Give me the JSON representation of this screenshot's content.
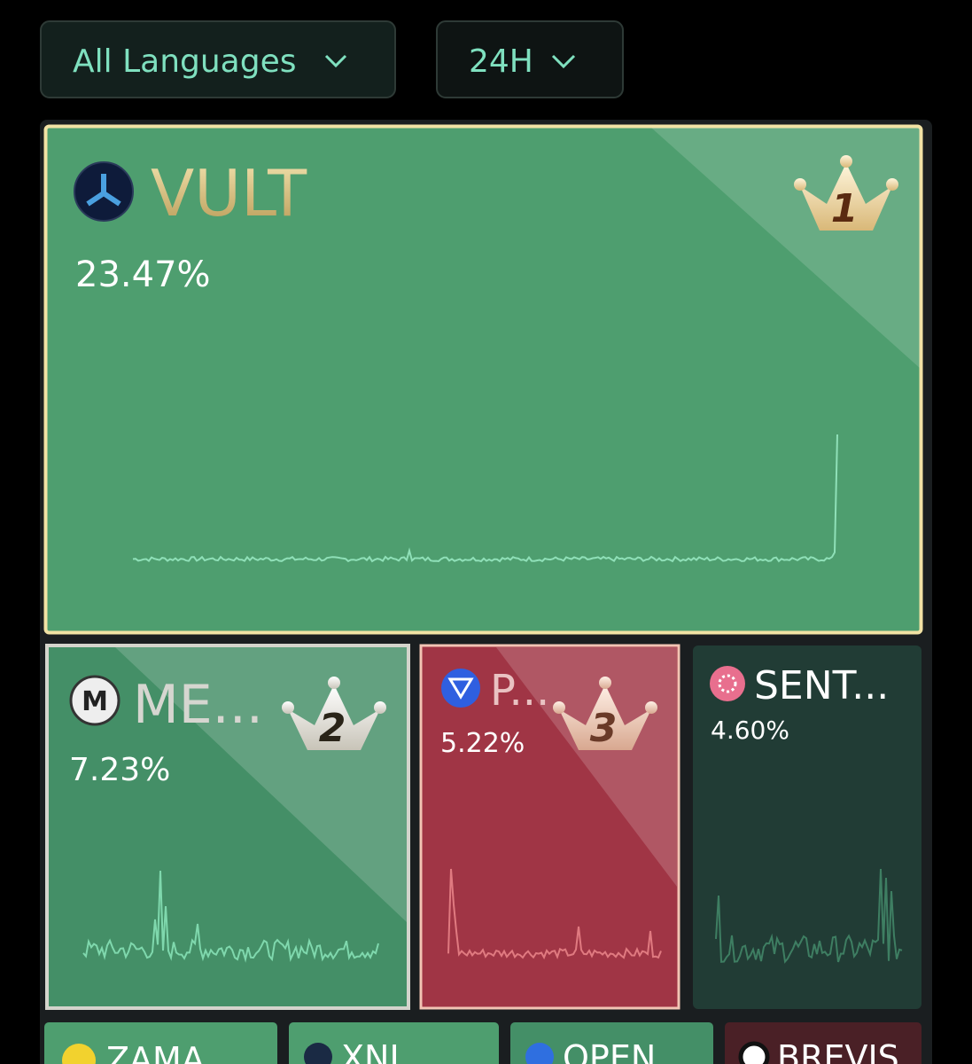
{
  "filters": [
    "All Languages",
    "24H"
  ],
  "tiles": [
    {
      "name": "VULT",
      "change": "23.47%",
      "rank": "1"
    },
    {
      "name": "ME...",
      "change": "7.23%",
      "rank": "2"
    },
    {
      "name": "P...",
      "change": "5.22%",
      "rank": "3"
    },
    {
      "name": "SENT...",
      "change": "4.60%"
    }
  ],
  "small_tiles": [
    "ZAMA",
    "XNI",
    "OPEN...",
    "BREVIS"
  ]
}
